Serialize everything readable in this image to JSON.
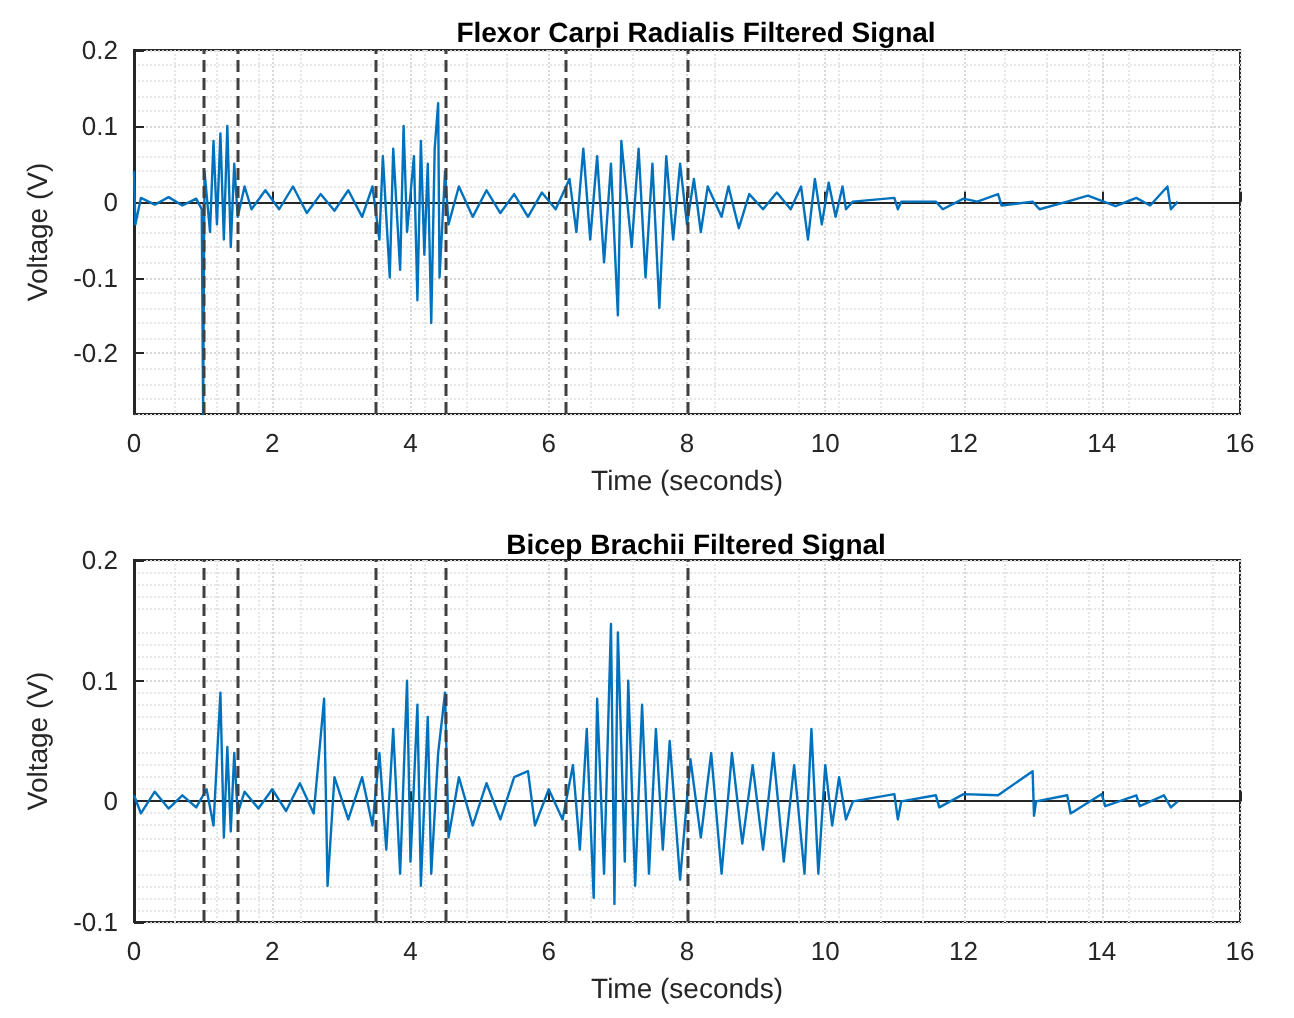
{
  "chart_data": [
    {
      "type": "line",
      "title": "Flexor Carpi Radialis Filtered Signal",
      "xlabel": "Time (seconds)",
      "ylabel": "Voltage (V)",
      "x": [
        0,
        0.02,
        0.1,
        0.3,
        0.5,
        0.7,
        0.9,
        0.98,
        1.0,
        1.02,
        1.1,
        1.15,
        1.2,
        1.25,
        1.3,
        1.35,
        1.4,
        1.45,
        1.5,
        1.6,
        1.7,
        1.9,
        2.1,
        2.3,
        2.5,
        2.7,
        2.9,
        3.1,
        3.3,
        3.45,
        3.55,
        3.6,
        3.7,
        3.75,
        3.85,
        3.9,
        3.95,
        4.05,
        4.1,
        4.15,
        4.2,
        4.25,
        4.3,
        4.35,
        4.4,
        4.42,
        4.5,
        4.55,
        4.7,
        4.9,
        5.1,
        5.3,
        5.5,
        5.7,
        5.9,
        6.1,
        6.3,
        6.4,
        6.5,
        6.6,
        6.7,
        6.8,
        6.9,
        7.0,
        7.05,
        7.2,
        7.3,
        7.4,
        7.5,
        7.6,
        7.7,
        7.8,
        7.9,
        8.0,
        8.1,
        8.2,
        8.3,
        8.5,
        8.6,
        8.75,
        8.9,
        9.1,
        9.3,
        9.5,
        9.65,
        9.75,
        9.85,
        9.95,
        10.05,
        10.15,
        10.25,
        10.3,
        10.4,
        11.0,
        11.05,
        11.1,
        11.6,
        11.7,
        12.0,
        12.2,
        12.5,
        12.55,
        13.0,
        13.1,
        13.5,
        13.8,
        14.2,
        14.5,
        14.7,
        14.95,
        15.0,
        15.1
      ],
      "series": [
        {
          "color": "#0072bd",
          "values": [
            0.04,
            -0.03,
            0.005,
            -0.004,
            0.006,
            -0.005,
            0.004,
            -0.01,
            -0.28,
            0.04,
            -0.04,
            0.08,
            -0.03,
            0.09,
            -0.05,
            0.1,
            -0.06,
            0.05,
            -0.02,
            0.02,
            -0.01,
            0.015,
            -0.01,
            0.02,
            -0.015,
            0.01,
            -0.012,
            0.015,
            -0.02,
            0.02,
            -0.05,
            0.06,
            -0.1,
            0.07,
            -0.09,
            0.1,
            -0.04,
            0.06,
            -0.13,
            0.08,
            -0.07,
            0.05,
            -0.16,
            0.07,
            0.13,
            -0.1,
            0.04,
            -0.03,
            0.02,
            -0.02,
            0.015,
            -0.015,
            0.01,
            -0.02,
            0.012,
            -0.01,
            0.03,
            -0.04,
            0.07,
            -0.05,
            0.06,
            -0.08,
            0.05,
            -0.15,
            0.08,
            -0.06,
            0.07,
            -0.1,
            0.05,
            -0.14,
            0.06,
            -0.05,
            0.05,
            -0.03,
            0.03,
            -0.04,
            0.02,
            -0.02,
            0.02,
            -0.035,
            0.01,
            -0.01,
            0.012,
            -0.01,
            0.02,
            -0.05,
            0.03,
            -0.03,
            0.025,
            -0.02,
            0.02,
            -0.01,
            0,
            0.005,
            -0.01,
            0,
            0,
            -0.01,
            0.004,
            0,
            0.01,
            -0.005,
            0,
            -0.01,
            0,
            0.008,
            -0.006,
            0.005,
            -0.005,
            0.02,
            -0.01,
            0
          ]
        }
      ],
      "xlim": [
        0,
        16
      ],
      "xticks": [
        0,
        2,
        4,
        6,
        8,
        10,
        12,
        14,
        16
      ],
      "ylim": [
        -0.28,
        0.2
      ],
      "yticks": [
        -0.2,
        -0.1,
        0,
        0.1,
        0.2
      ],
      "grid": true,
      "marker": "none",
      "line_style": "solid",
      "ref_lines": [
        {
          "axis": "x",
          "value": 1,
          "color": "#404040",
          "line_style": "dashed"
        },
        {
          "axis": "x",
          "value": 1.5,
          "color": "#404040",
          "line_style": "dashed"
        },
        {
          "axis": "x",
          "value": 3.5,
          "color": "#404040",
          "line_style": "dashed"
        },
        {
          "axis": "x",
          "value": 4.5,
          "color": "#404040",
          "line_style": "dashed"
        },
        {
          "axis": "x",
          "value": 6.25,
          "color": "#404040",
          "line_style": "dashed"
        },
        {
          "axis": "x",
          "value": 8,
          "color": "#404040",
          "line_style": "dashed"
        }
      ]
    },
    {
      "type": "line",
      "title": "Bicep Brachii Filtered Signal",
      "xlabel": "Time (seconds)",
      "ylabel": "Voltage (V)",
      "x": [
        0,
        0.1,
        0.3,
        0.5,
        0.7,
        0.9,
        1.05,
        1.15,
        1.25,
        1.3,
        1.35,
        1.4,
        1.45,
        1.5,
        1.6,
        1.8,
        2.0,
        2.2,
        2.4,
        2.6,
        2.75,
        2.8,
        2.9,
        3.1,
        3.3,
        3.45,
        3.55,
        3.65,
        3.75,
        3.85,
        3.95,
        4.0,
        4.1,
        4.15,
        4.25,
        4.3,
        4.4,
        4.5,
        4.55,
        4.7,
        4.9,
        5.1,
        5.3,
        5.5,
        5.7,
        5.8,
        6.0,
        6.2,
        6.35,
        6.45,
        6.55,
        6.65,
        6.7,
        6.8,
        6.9,
        6.95,
        7.0,
        7.1,
        7.15,
        7.25,
        7.35,
        7.45,
        7.55,
        7.65,
        7.75,
        7.9,
        8.05,
        8.2,
        8.35,
        8.5,
        8.65,
        8.8,
        8.95,
        9.1,
        9.25,
        9.4,
        9.55,
        9.7,
        9.8,
        9.9,
        10.0,
        10.1,
        10.2,
        10.3,
        10.4,
        11.0,
        11.05,
        11.1,
        11.6,
        11.65,
        12.0,
        12.5,
        13.0,
        13.02,
        13.05,
        13.5,
        13.55,
        14.0,
        14.05,
        14.5,
        14.55,
        14.9,
        15.0,
        15.1
      ],
      "series": [
        {
          "color": "#0072bd",
          "values": [
            0.005,
            -0.01,
            0.008,
            -0.006,
            0.005,
            -0.005,
            0.01,
            -0.02,
            0.09,
            -0.03,
            0.045,
            -0.025,
            0.04,
            -0.01,
            0.008,
            -0.006,
            0.01,
            -0.008,
            0.015,
            -0.01,
            0.085,
            -0.07,
            0.02,
            -0.015,
            0.02,
            -0.02,
            0.04,
            -0.04,
            0.06,
            -0.06,
            0.1,
            -0.05,
            0.08,
            -0.07,
            0.07,
            -0.06,
            0.04,
            0.09,
            -0.03,
            0.02,
            -0.02,
            0.015,
            -0.015,
            0.02,
            0.025,
            -0.02,
            0.01,
            -0.015,
            0.03,
            -0.04,
            0.06,
            -0.08,
            0.085,
            -0.06,
            0.147,
            -0.085,
            0.14,
            -0.05,
            0.1,
            -0.07,
            0.08,
            -0.06,
            0.06,
            -0.04,
            0.05,
            -0.065,
            0.035,
            -0.03,
            0.04,
            -0.06,
            0.04,
            -0.035,
            0.03,
            -0.04,
            0.04,
            -0.05,
            0.03,
            -0.06,
            0.06,
            -0.06,
            0.03,
            -0.02,
            0.02,
            -0.015,
            0,
            0.006,
            -0.015,
            0,
            0.005,
            -0.005,
            0.006,
            0.005,
            0.025,
            -0.012,
            0,
            0.005,
            -0.01,
            0.006,
            -0.004,
            0.005,
            -0.004,
            0.005,
            -0.005,
            0
          ]
        }
      ],
      "xlim": [
        0,
        16
      ],
      "xticks": [
        0,
        2,
        4,
        6,
        8,
        10,
        12,
        14,
        16
      ],
      "ylim": [
        -0.1,
        0.2
      ],
      "yticks": [
        -0.1,
        0,
        0.1,
        0.2
      ],
      "grid": true,
      "marker": "none",
      "line_style": "solid",
      "ref_lines": [
        {
          "axis": "x",
          "value": 1,
          "color": "#404040",
          "line_style": "dashed"
        },
        {
          "axis": "x",
          "value": 1.5,
          "color": "#404040",
          "line_style": "dashed"
        },
        {
          "axis": "x",
          "value": 3.5,
          "color": "#404040",
          "line_style": "dashed"
        },
        {
          "axis": "x",
          "value": 4.5,
          "color": "#404040",
          "line_style": "dashed"
        },
        {
          "axis": "x",
          "value": 6.25,
          "color": "#404040",
          "line_style": "dashed"
        },
        {
          "axis": "x",
          "value": 8,
          "color": "#404040",
          "line_style": "dashed"
        }
      ]
    }
  ]
}
